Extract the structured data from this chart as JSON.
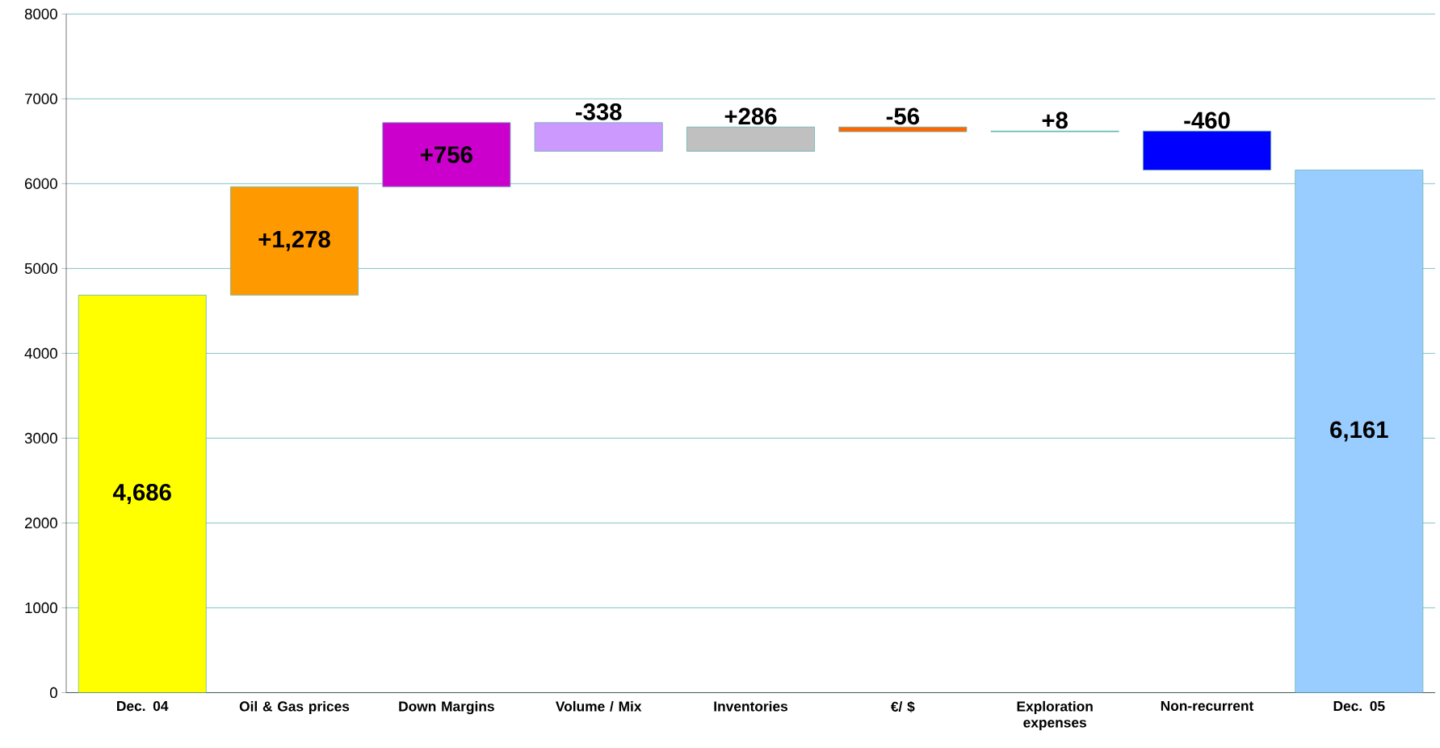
{
  "chart_data": {
    "type": "bar",
    "categories": [
      "Dec. 04",
      "Oil & Gas prices",
      "Down Margins",
      "Volume / Mix",
      "Inventories",
      "€/ $",
      "Exploration expenses",
      "Non-recurrent",
      "Dec. 05"
    ],
    "values": [
      4686,
      1278,
      756,
      -338,
      286,
      -56,
      8,
      -460,
      6161
    ],
    "base": [
      0,
      4686,
      5964,
      6720,
      6382,
      6668,
      6612,
      6620,
      0
    ],
    "value_labels": [
      "4,686",
      "+1,278",
      "+756",
      "-338",
      "+286",
      "-56",
      "+8",
      "-460",
      "6,161"
    ],
    "colors": [
      "#ffff00",
      "#ff9900",
      "#cc00cc",
      "#cc99ff",
      "#c0c0c0",
      "#ff6600",
      "#00cccc",
      "#0000ff",
      "#99ccff"
    ],
    "ylim": [
      0,
      8000
    ],
    "yticks": [
      0,
      1000,
      2000,
      3000,
      4000,
      5000,
      6000,
      7000,
      8000
    ],
    "grid": "y"
  }
}
